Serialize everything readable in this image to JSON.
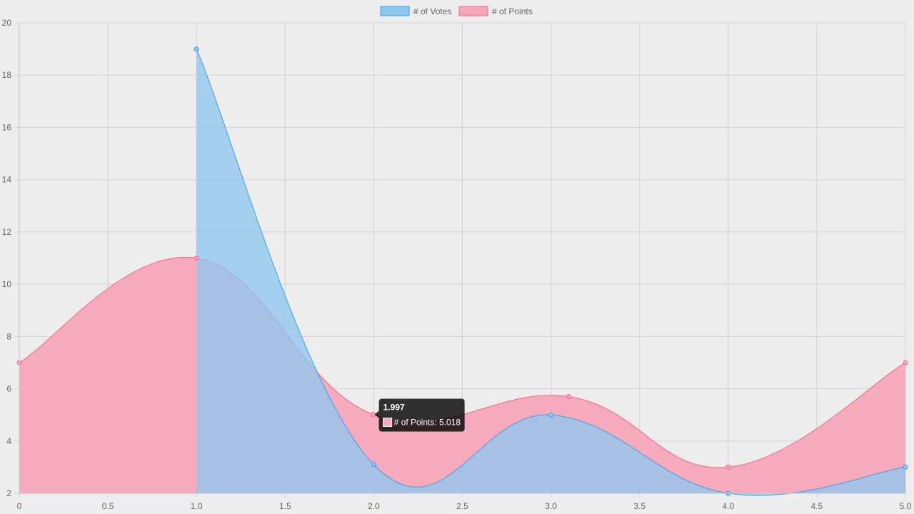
{
  "chart_data": {
    "type": "area",
    "title": "",
    "xlabel": "",
    "ylabel": "",
    "xlim": [
      0,
      5
    ],
    "ylim": [
      2,
      20
    ],
    "x_ticks": [
      "0",
      "0.5",
      "1.0",
      "1.5",
      "2.0",
      "2.5",
      "3.0",
      "3.5",
      "4.0",
      "4.5",
      "5.0"
    ],
    "y_ticks": [
      "2",
      "4",
      "6",
      "8",
      "10",
      "12",
      "14",
      "16",
      "18",
      "20"
    ],
    "grid": true,
    "legend_position": "top-center",
    "series": [
      {
        "name": "# of Votes",
        "color": "#36a2eb",
        "fill": "#8fc6ee",
        "points": [
          {
            "x": 1.0,
            "y": 19
          },
          {
            "x": 2.0,
            "y": 3.1
          },
          {
            "x": 3.0,
            "y": 5
          },
          {
            "x": 4.0,
            "y": 2
          },
          {
            "x": 5.0,
            "y": 3
          }
        ]
      },
      {
        "name": "# of Points",
        "color": "#ff6384",
        "fill": "#f6a8b9",
        "points": [
          {
            "x": 0,
            "y": 7
          },
          {
            "x": 1.0,
            "y": 11
          },
          {
            "x": 1.997,
            "y": 5.018
          },
          {
            "x": 3.1,
            "y": 5.7
          },
          {
            "x": 4.0,
            "y": 3
          },
          {
            "x": 5.0,
            "y": 7
          }
        ]
      }
    ],
    "tooltip": {
      "title": "1.997",
      "series": "# of Points",
      "label": "# of Points: 5.018",
      "x": 1.997,
      "y": 5.018
    }
  }
}
